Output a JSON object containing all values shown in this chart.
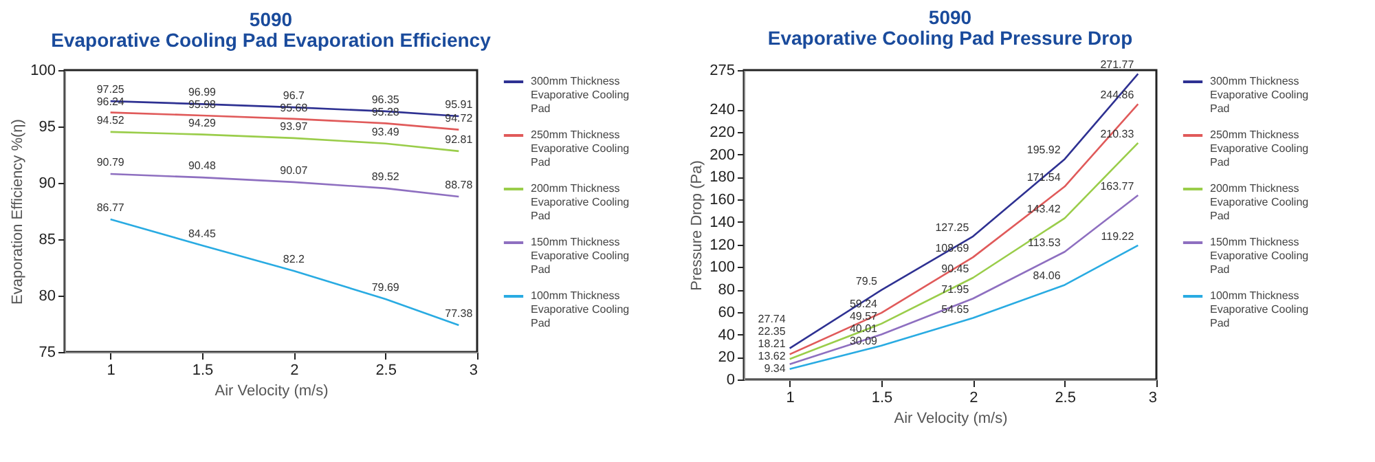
{
  "chart_data": [
    {
      "type": "line",
      "title": "5090",
      "subtitle": "Evaporative Cooling Pad Evaporation Efficiency",
      "xlabel": "Air Velocity  (m/s)",
      "ylabel": "Evaporation Efficiency  %(η)",
      "x": [
        1,
        1.5,
        2,
        2.5,
        2.9
      ],
      "xlim": [
        0.75,
        3
      ],
      "xticks": [
        1,
        1.5,
        2,
        2.5,
        3
      ],
      "ylim": [
        75,
        100
      ],
      "yticks": [
        75,
        80,
        85,
        90,
        95,
        100
      ],
      "legend": "right",
      "data_labels": true,
      "series": [
        {
          "name": "300mm Thickness Evaporative Cooling Pad",
          "color": "#2e3192",
          "values": [
            97.25,
            96.99,
            96.7,
            96.35,
            95.91
          ]
        },
        {
          "name": "250mm Thickness Evaporative Cooling Pad",
          "color": "#e05a5a",
          "values": [
            96.24,
            95.98,
            95.68,
            95.28,
            94.72
          ]
        },
        {
          "name": "200mm Thickness Evaporative Cooling Pad",
          "color": "#9acd4a",
          "values": [
            94.52,
            94.29,
            93.97,
            93.49,
            92.81
          ]
        },
        {
          "name": "150mm Thickness Evaporative Cooling Pad",
          "color": "#8e6fc0",
          "values": [
            90.79,
            90.48,
            90.07,
            89.52,
            88.78
          ]
        },
        {
          "name": "100mm Thickness Evaporative Cooling Pad",
          "color": "#29abe2",
          "values": [
            86.77,
            84.45,
            82.2,
            79.69,
            77.38
          ]
        }
      ]
    },
    {
      "type": "line",
      "title": "5090",
      "subtitle": "Evaporative Cooling Pad Pressure Drop",
      "xlabel": "Air Velocity  (m/s)",
      "ylabel": "Pressure Drop (Pa)",
      "x": [
        1,
        1.5,
        2,
        2.5,
        2.9
      ],
      "xlim": [
        0.75,
        3
      ],
      "xticks": [
        1,
        1.5,
        2,
        2.5,
        3
      ],
      "ylim": [
        0,
        275
      ],
      "yticks": [
        0,
        20,
        40,
        60,
        80,
        100,
        120,
        140,
        160,
        180,
        200,
        220,
        240,
        275
      ],
      "legend": "right",
      "data_labels": true,
      "series": [
        {
          "name": "300mm Thickness Evaporative Cooling Pad",
          "color": "#2e3192",
          "values": [
            27.74,
            79.5,
            127.25,
            195.92,
            271.77
          ]
        },
        {
          "name": "250mm Thickness Evaporative Cooling Pad",
          "color": "#e05a5a",
          "values": [
            22.35,
            59.24,
            108.69,
            171.54,
            244.86
          ]
        },
        {
          "name": "200mm Thickness Evaporative Cooling Pad",
          "color": "#9acd4a",
          "values": [
            18.21,
            49.57,
            90.45,
            143.42,
            210.33
          ]
        },
        {
          "name": "150mm Thickness Evaporative Cooling Pad",
          "color": "#8e6fc0",
          "values": [
            13.62,
            40.01,
            71.95,
            113.53,
            163.77
          ]
        },
        {
          "name": "100mm Thickness Evaporative Cooling Pad",
          "color": "#29abe2",
          "values": [
            9.34,
            30.09,
            54.65,
            84.06,
            119.22
          ]
        }
      ]
    }
  ]
}
